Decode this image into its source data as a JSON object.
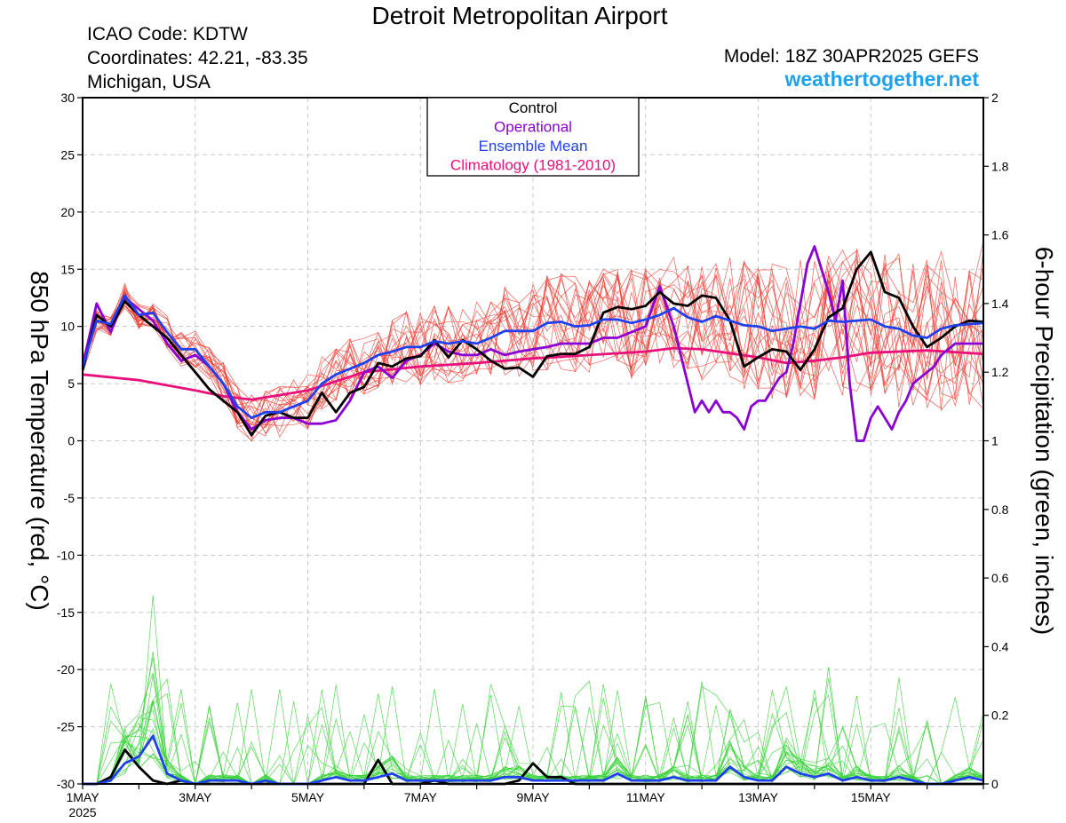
{
  "header": {
    "title": "Detroit Metropolitan Airport",
    "icao": "ICAO Code: KDTW",
    "coordinates": "Coordinates: 42.21, -83.35",
    "region": "Michigan, USA",
    "model": "Model: 18Z 30APR2025 GEFS",
    "site": "weathertogether.net"
  },
  "chart_data": {
    "type": "line",
    "ylabel_left": "850 hPa Temperature (red, °C)",
    "ylabel_right": "6-hour Precipitation (green, inches)",
    "ylim_left": [
      -30,
      30
    ],
    "ylim_right": [
      0,
      2
    ],
    "xlim_days": [
      1.0,
      17.0
    ],
    "left_ticks": [
      30,
      25,
      20,
      15,
      10,
      5,
      0,
      -5,
      -10,
      -15,
      -20,
      -25,
      -30
    ],
    "right_ticks": [
      "2",
      "1.8",
      "1.6",
      "1.4",
      "1.2",
      "1",
      "0.8",
      "0.6",
      "0.4",
      "0.2",
      "0"
    ],
    "x_tick_labels": [
      {
        "day": 1,
        "label": "1MAY",
        "sublabel": "2025"
      },
      {
        "day": 3,
        "label": "3MAY"
      },
      {
        "day": 5,
        "label": "5MAY"
      },
      {
        "day": 7,
        "label": "7MAY"
      },
      {
        "day": 9,
        "label": "9MAY"
      },
      {
        "day": 11,
        "label": "11MAY"
      },
      {
        "day": 13,
        "label": "13MAY"
      },
      {
        "day": 15,
        "label": "15MAY"
      }
    ],
    "grid": true,
    "legend": {
      "position": "top-center",
      "entries": [
        {
          "label": "Control",
          "color": "#000000"
        },
        {
          "label": "Operational",
          "color": "#8a00d4"
        },
        {
          "label": "Ensemble Mean",
          "color": "#2040ee"
        },
        {
          "label": "Climatology (1981-2010)",
          "color": "#e8107a"
        }
      ]
    },
    "colors": {
      "members_temperature": "#f03a30",
      "members_precipitation": "#3ad23a",
      "control": "#000000",
      "operational": "#8a00d4",
      "ensemble_mean": "#2040ee",
      "climatology": "#e8107a"
    },
    "series": [
      {
        "name": "Control",
        "axis": "left",
        "color": "#000000",
        "x": [
          1.0,
          1.25,
          1.5,
          1.75,
          2.0,
          2.25,
          2.5,
          2.75,
          3.0,
          3.25,
          3.5,
          3.75,
          4.0,
          4.25,
          4.5,
          4.75,
          5.0,
          5.25,
          5.5,
          5.75,
          6.0,
          6.25,
          6.5,
          6.75,
          7.0,
          7.25,
          7.5,
          7.75,
          8.0,
          8.25,
          8.5,
          8.75,
          9.0,
          9.25,
          9.5,
          9.75,
          10.0,
          10.25,
          10.5,
          10.75,
          11.0,
          11.25,
          11.5,
          11.75,
          12.0,
          12.25,
          12.5,
          12.75,
          13.0,
          13.25,
          13.5,
          13.75,
          14.0,
          14.25,
          14.5,
          14.75,
          15.0,
          15.25,
          15.5,
          15.75,
          16.0,
          16.25,
          16.5,
          16.75,
          17.0
        ],
        "y": [
          6.2,
          11.0,
          10.0,
          12.2,
          11.0,
          10.0,
          9.0,
          7.5,
          6.0,
          4.5,
          3.5,
          2.5,
          0.5,
          2.2,
          2.5,
          2.0,
          2.0,
          4.2,
          2.5,
          4.2,
          4.7,
          6.8,
          6.5,
          7.2,
          7.4,
          8.8,
          7.3,
          8.8,
          8.0,
          7.0,
          6.3,
          6.4,
          5.6,
          7.4,
          7.6,
          7.6,
          8.2,
          11.2,
          11.7,
          11.5,
          11.8,
          13.0,
          12.0,
          11.8,
          12.7,
          12.5,
          10.5,
          6.5,
          7.3,
          8.0,
          7.8,
          6.2,
          8.0,
          10.8,
          11.6,
          15.0,
          16.5,
          13.0,
          12.5,
          10.0,
          8.2,
          9.0,
          10.0,
          10.5,
          10.4
        ]
      },
      {
        "name": "Operational",
        "axis": "left",
        "color": "#8a00d4",
        "x": [
          1.0,
          1.25,
          1.5,
          1.75,
          2.0,
          2.25,
          2.5,
          2.75,
          3.0,
          3.25,
          3.5,
          3.75,
          4.0,
          4.25,
          4.5,
          4.75,
          5.0,
          5.25,
          5.5,
          5.75,
          6.0,
          6.25,
          6.5,
          6.75,
          7.0,
          7.25,
          7.5,
          7.75,
          8.0,
          8.25,
          8.5,
          8.75,
          9.0,
          9.25,
          9.5,
          9.75,
          10.0,
          10.25,
          10.5,
          10.75,
          11.0,
          11.25,
          11.5,
          11.75,
          11.875,
          12.0,
          12.125,
          12.25,
          12.375,
          12.5,
          12.625,
          12.75,
          12.875,
          13.0,
          13.125,
          13.25,
          13.375,
          13.5,
          13.625,
          13.75,
          13.875,
          14.0,
          14.125,
          14.25,
          14.375,
          14.5,
          14.625,
          14.75,
          14.875,
          15.0,
          15.125,
          15.25,
          15.375,
          15.5,
          15.625,
          15.75,
          15.875,
          16.0,
          16.125,
          16.25,
          16.375,
          16.5,
          16.625,
          16.75,
          16.875,
          17.0
        ],
        "y": [
          6.5,
          12.0,
          9.5,
          12.5,
          11.5,
          10.5,
          8.5,
          7.0,
          7.5,
          6.5,
          5.0,
          2.5,
          1.0,
          1.8,
          2.0,
          2.0,
          1.5,
          1.5,
          1.8,
          3.5,
          6.0,
          6.5,
          5.5,
          7.0,
          7.5,
          8.5,
          7.8,
          7.5,
          7.5,
          8.0,
          7.5,
          7.8,
          8.0,
          8.2,
          8.5,
          8.5,
          8.5,
          9.0,
          9.0,
          9.5,
          10.0,
          13.5,
          10.0,
          5.0,
          2.5,
          3.5,
          2.5,
          3.5,
          2.5,
          2.5,
          2.0,
          1.0,
          3.0,
          3.5,
          3.5,
          4.5,
          5.5,
          6.0,
          8.5,
          12.0,
          15.5,
          17.0,
          15.0,
          13.0,
          10.5,
          14.0,
          5.0,
          0.0,
          0.0,
          2.0,
          3.0,
          2.0,
          1.0,
          2.5,
          3.5,
          5.0,
          5.5,
          6.0,
          6.5,
          7.5,
          8.0,
          8.5,
          8.5,
          8.5,
          8.5,
          8.5
        ]
      },
      {
        "name": "Ensemble Mean",
        "axis": "left",
        "color": "#2040ee",
        "x": [
          1.0,
          1.25,
          1.5,
          1.75,
          2.0,
          2.25,
          2.5,
          2.75,
          3.0,
          3.25,
          3.5,
          3.75,
          4.0,
          4.25,
          4.5,
          4.75,
          5.0,
          5.25,
          5.5,
          5.75,
          6.0,
          6.25,
          6.5,
          6.75,
          7.0,
          7.25,
          7.5,
          7.75,
          8.0,
          8.25,
          8.5,
          8.75,
          9.0,
          9.25,
          9.5,
          9.75,
          10.0,
          10.25,
          10.5,
          10.75,
          11.0,
          11.25,
          11.5,
          11.75,
          12.0,
          12.25,
          12.5,
          12.75,
          13.0,
          13.25,
          13.5,
          13.75,
          14.0,
          14.25,
          14.5,
          14.75,
          15.0,
          15.25,
          15.5,
          15.75,
          16.0,
          16.25,
          16.5,
          16.75,
          17.0
        ],
        "y": [
          6.5,
          10.5,
          10.2,
          12.7,
          11.0,
          11.2,
          9.5,
          8.0,
          8.0,
          6.5,
          5.0,
          3.0,
          2.0,
          2.5,
          2.5,
          3.0,
          3.5,
          5.0,
          5.8,
          6.3,
          6.8,
          7.5,
          7.8,
          8.2,
          8.2,
          8.7,
          8.5,
          8.7,
          8.5,
          9.0,
          9.6,
          9.6,
          9.6,
          10.3,
          10.4,
          10.0,
          10.1,
          10.6,
          10.6,
          10.3,
          10.6,
          11.0,
          11.6,
          10.8,
          10.4,
          10.9,
          10.5,
          10.1,
          10.0,
          9.6,
          9.8,
          10.0,
          9.8,
          10.5,
          10.4,
          10.5,
          10.6,
          10.0,
          9.8,
          9.2,
          9.0,
          9.8,
          10.1,
          10.2,
          10.3
        ]
      },
      {
        "name": "Climatology (1981-2010)",
        "axis": "left",
        "color": "#e8107a",
        "x": [
          1.0,
          2.0,
          3.0,
          3.5,
          4.0,
          4.5,
          5.0,
          5.5,
          6.0,
          7.0,
          8.0,
          9.0,
          10.0,
          11.0,
          11.5,
          12.0,
          13.0,
          13.5,
          14.0,
          14.5,
          15.0,
          16.0,
          17.0
        ],
        "y": [
          5.8,
          5.3,
          4.4,
          3.9,
          3.6,
          4.0,
          4.4,
          5.2,
          6.0,
          6.5,
          6.8,
          7.2,
          7.5,
          7.8,
          8.1,
          8.0,
          7.3,
          6.8,
          7.0,
          7.3,
          7.7,
          7.9,
          7.6
        ]
      },
      {
        "name": "Control",
        "axis": "right",
        "color": "#000000",
        "x": [
          1.0,
          1.25,
          1.5,
          1.75,
          2.0,
          2.25,
          2.5,
          2.75,
          3.0,
          3.25,
          3.5,
          3.75,
          4.0,
          4.25,
          4.5,
          4.75,
          5.0,
          5.25,
          5.5,
          5.75,
          6.0,
          6.25,
          6.5,
          6.75,
          7.0,
          7.25,
          7.5,
          7.75,
          8.0,
          8.25,
          8.5,
          8.75,
          9.0,
          9.25,
          9.5,
          9.75,
          10.0,
          10.25,
          10.5,
          10.75,
          11.0,
          11.25,
          11.5,
          11.75,
          12.0,
          12.25,
          12.5,
          12.75,
          13.0,
          13.25,
          13.5,
          13.75,
          14.0,
          14.25,
          14.5,
          14.75,
          15.0,
          15.25,
          15.5,
          15.75,
          16.0,
          16.25,
          16.5,
          16.75,
          17.0
        ],
        "y": [
          0,
          0,
          0.02,
          0.1,
          0.05,
          0.01,
          0,
          0.01,
          0,
          0,
          0,
          0,
          0,
          0,
          0,
          0,
          0,
          0,
          0,
          0,
          0,
          0.07,
          0,
          0,
          0,
          0.01,
          0,
          0,
          0,
          0,
          0,
          0.01,
          0.06,
          0.02,
          0.02,
          0,
          0,
          0,
          0,
          0,
          0,
          0,
          0,
          0,
          0,
          0,
          0,
          0,
          0,
          0,
          0,
          0,
          0,
          0,
          0,
          0,
          0,
          0,
          0,
          0,
          0,
          0,
          0,
          0,
          0
        ]
      },
      {
        "name": "Ensemble Mean",
        "axis": "right",
        "color": "#2040ee",
        "x": [
          1.0,
          1.25,
          1.5,
          1.75,
          2.0,
          2.25,
          2.5,
          2.75,
          3.0,
          3.25,
          3.5,
          3.75,
          4.0,
          4.25,
          4.5,
          4.75,
          5.0,
          5.25,
          5.5,
          5.75,
          6.0,
          6.25,
          6.5,
          6.75,
          7.0,
          7.25,
          7.5,
          7.75,
          8.0,
          8.25,
          8.5,
          8.75,
          9.0,
          9.25,
          9.5,
          9.75,
          10.0,
          10.25,
          10.5,
          10.75,
          11.0,
          11.25,
          11.5,
          11.75,
          12.0,
          12.25,
          12.5,
          12.75,
          13.0,
          13.25,
          13.5,
          13.75,
          14.0,
          14.25,
          14.5,
          14.75,
          15.0,
          15.25,
          15.5,
          15.75,
          16.0,
          16.25,
          16.5,
          16.75,
          17.0
        ],
        "y": [
          0,
          0,
          0.01,
          0.06,
          0.08,
          0.14,
          0.03,
          0.01,
          0,
          0.01,
          0.01,
          0.01,
          0,
          0.01,
          0,
          0,
          0,
          0.01,
          0.02,
          0.01,
          0.01,
          0.02,
          0.03,
          0.01,
          0.01,
          0.01,
          0.01,
          0.01,
          0.01,
          0.01,
          0.02,
          0.02,
          0.01,
          0.01,
          0.01,
          0.01,
          0.01,
          0.01,
          0.03,
          0.01,
          0.01,
          0.01,
          0.02,
          0.01,
          0.01,
          0.01,
          0.05,
          0.02,
          0.01,
          0.01,
          0.05,
          0.03,
          0.02,
          0.03,
          0.01,
          0.02,
          0.01,
          0.01,
          0.02,
          0.01,
          0,
          0,
          0.01,
          0.02,
          0.01
        ]
      }
    ]
  }
}
